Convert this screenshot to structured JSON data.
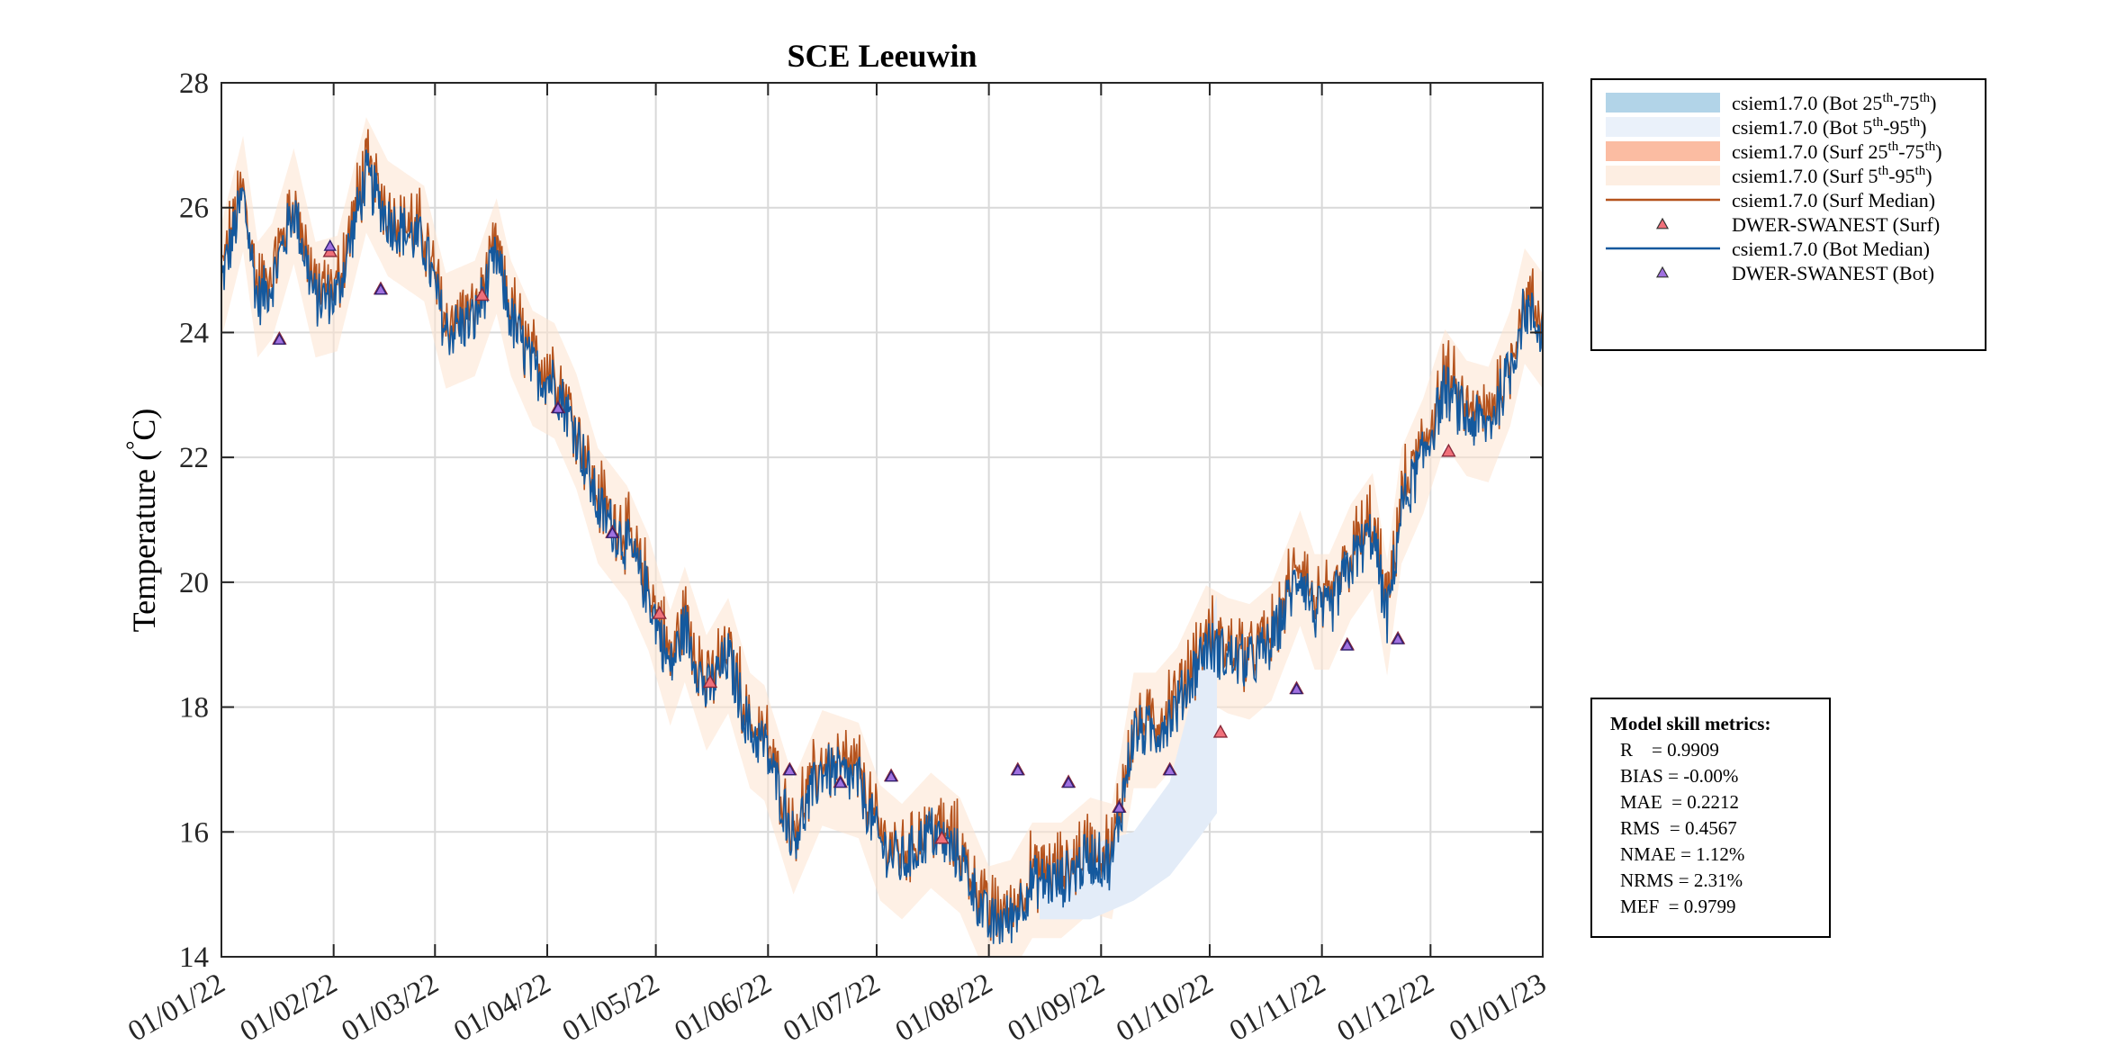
{
  "chart_data": {
    "type": "line",
    "title": "SCE Leeuwin",
    "ylabel": "Temperature (°C)",
    "ylabel_main": "Temperature (",
    "ylabel_degree": "°",
    "ylabel_unit": "C)",
    "xlabel": "",
    "ylim": [
      14,
      28
    ],
    "yticks": [
      14,
      16,
      18,
      20,
      22,
      24,
      26,
      28
    ],
    "xlim_days": [
      0,
      365
    ],
    "xticks": [
      {
        "label": "01/01/22",
        "day": 0
      },
      {
        "label": "01/02/22",
        "day": 31
      },
      {
        "label": "01/03/22",
        "day": 59
      },
      {
        "label": "01/04/22",
        "day": 90
      },
      {
        "label": "01/05/22",
        "day": 120
      },
      {
        "label": "01/06/22",
        "day": 151
      },
      {
        "label": "01/07/22",
        "day": 181
      },
      {
        "label": "01/08/22",
        "day": 212
      },
      {
        "label": "01/09/22",
        "day": 243
      },
      {
        "label": "01/10/22",
        "day": 273
      },
      {
        "label": "01/11/22",
        "day": 304
      },
      {
        "label": "01/12/22",
        "day": 334
      },
      {
        "label": "01/01/23",
        "day": 365
      }
    ],
    "grid": true,
    "median_anchors": [
      [
        0,
        24.8
      ],
      [
        6,
        26.2
      ],
      [
        10,
        24.5
      ],
      [
        14,
        24.8
      ],
      [
        20,
        26.0
      ],
      [
        26,
        24.5
      ],
      [
        32,
        24.6
      ],
      [
        40,
        26.5
      ],
      [
        46,
        25.8
      ],
      [
        56,
        25.4
      ],
      [
        62,
        24.0
      ],
      [
        70,
        24.2
      ],
      [
        76,
        25.2
      ],
      [
        80,
        24.2
      ],
      [
        86,
        23.4
      ],
      [
        92,
        23.2
      ],
      [
        98,
        22.4
      ],
      [
        104,
        21.2
      ],
      [
        112,
        20.6
      ],
      [
        118,
        19.8
      ],
      [
        124,
        18.6
      ],
      [
        128,
        19.3
      ],
      [
        134,
        18.2
      ],
      [
        140,
        18.8
      ],
      [
        146,
        17.6
      ],
      [
        150,
        17.4
      ],
      [
        158,
        15.9
      ],
      [
        166,
        17.0
      ],
      [
        176,
        16.8
      ],
      [
        182,
        15.8
      ],
      [
        188,
        15.5
      ],
      [
        196,
        16.0
      ],
      [
        204,
        15.6
      ],
      [
        212,
        14.5
      ],
      [
        218,
        14.6
      ],
      [
        224,
        15.2
      ],
      [
        232,
        15.2
      ],
      [
        240,
        15.6
      ],
      [
        246,
        15.5
      ],
      [
        252,
        17.6
      ],
      [
        258,
        17.6
      ],
      [
        264,
        18.0
      ],
      [
        272,
        19.0
      ],
      [
        278,
        18.8
      ],
      [
        284,
        18.7
      ],
      [
        290,
        19.0
      ],
      [
        298,
        20.2
      ],
      [
        302,
        19.5
      ],
      [
        306,
        19.5
      ],
      [
        312,
        20.3
      ],
      [
        318,
        20.8
      ],
      [
        322,
        19.4
      ],
      [
        326,
        21.2
      ],
      [
        332,
        22.0
      ],
      [
        338,
        23.1
      ],
      [
        344,
        22.6
      ],
      [
        350,
        22.5
      ],
      [
        356,
        23.4
      ],
      [
        360,
        24.4
      ],
      [
        365,
        24.0
      ]
    ],
    "band_anchors": [
      {
        "day": 226,
        "lo": 14.6,
        "hi": 15.6
      },
      {
        "day": 240,
        "lo": 14.6,
        "hi": 15.8
      },
      {
        "day": 252,
        "lo": 14.9,
        "hi": 16.0
      },
      {
        "day": 262,
        "lo": 15.3,
        "hi": 16.8
      },
      {
        "day": 270,
        "lo": 15.9,
        "hi": 18.6
      },
      {
        "day": 275,
        "lo": 16.3,
        "hi": 19.8
      }
    ],
    "obs_surf": [
      {
        "day": 16,
        "y": 23.9
      },
      {
        "day": 30,
        "y": 25.3
      },
      {
        "day": 44,
        "y": 24.7
      },
      {
        "day": 72,
        "y": 24.6
      },
      {
        "day": 93,
        "y": 22.8
      },
      {
        "day": 108,
        "y": 20.8
      },
      {
        "day": 121,
        "y": 19.5
      },
      {
        "day": 135,
        "y": 18.4
      },
      {
        "day": 157,
        "y": 17.0
      },
      {
        "day": 171,
        "y": 16.8
      },
      {
        "day": 185,
        "y": 16.9
      },
      {
        "day": 199,
        "y": 15.9
      },
      {
        "day": 220,
        "y": 17.0
      },
      {
        "day": 234,
        "y": 16.8
      },
      {
        "day": 248,
        "y": 16.4
      },
      {
        "day": 262,
        "y": 17.0
      },
      {
        "day": 276,
        "y": 17.6
      },
      {
        "day": 297,
        "y": 18.3
      },
      {
        "day": 311,
        "y": 19.0
      },
      {
        "day": 325,
        "y": 19.1
      },
      {
        "day": 339,
        "y": 22.1
      }
    ],
    "obs_bot": [
      {
        "day": 16,
        "y": 23.9
      },
      {
        "day": 30,
        "y": 25.4
      },
      {
        "day": 44,
        "y": 24.7
      },
      {
        "day": 93,
        "y": 22.8
      },
      {
        "day": 108,
        "y": 20.8
      },
      {
        "day": 157,
        "y": 17.0
      },
      {
        "day": 171,
        "y": 16.8
      },
      {
        "day": 185,
        "y": 16.9
      },
      {
        "day": 220,
        "y": 17.0
      },
      {
        "day": 234,
        "y": 16.8
      },
      {
        "day": 248,
        "y": 16.4
      },
      {
        "day": 262,
        "y": 17.0
      },
      {
        "day": 297,
        "y": 18.3
      },
      {
        "day": 311,
        "y": 19.0
      },
      {
        "day": 325,
        "y": 19.1
      }
    ],
    "legend": [
      {
        "base": "csiem1.7.0 (Bot 25",
        "sup1": "th",
        "mid": "-75",
        "sup2": "th",
        "end": ")",
        "kind": "band",
        "color": "#b2d4e8"
      },
      {
        "base": "csiem1.7.0 (Bot 5",
        "sup1": "th",
        "mid": "-95",
        "sup2": "th",
        "end": ")",
        "kind": "band",
        "color": "#eaf1fa"
      },
      {
        "base": "csiem1.7.0 (Surf 25",
        "sup1": "th",
        "mid": "-75",
        "sup2": "th",
        "end": ")",
        "kind": "band",
        "color": "#fbbca2"
      },
      {
        "base": "csiem1.7.0 (Surf 5",
        "sup1": "th",
        "mid": "-95",
        "sup2": "th",
        "end": ")",
        "kind": "band",
        "color": "#fdeee2"
      },
      {
        "text": "csiem1.7.0 (Surf Median)",
        "kind": "line",
        "color": "#b5531d"
      },
      {
        "text": "DWER-SWANEST (Surf)",
        "kind": "marker",
        "color": "#f0707a"
      },
      {
        "text": "csiem1.7.0 (Bot Median)",
        "kind": "line",
        "color": "#14599e"
      },
      {
        "text": "DWER-SWANEST (Bot)",
        "kind": "marker",
        "color": "#a070e0"
      }
    ],
    "metrics_title": "Model skill metrics:",
    "metrics": [
      "R    = 0.9909",
      "BIAS = -0.00%",
      "MAE  = 0.2212",
      "RMS  = 0.4567",
      "NMAE = 1.12%",
      "NRMS = 2.31%",
      "MEF  = 0.9799"
    ]
  },
  "colors": {
    "bot_median": "#14599e",
    "surf_median": "#b5531d",
    "surf_outer_band": "#fde3d0",
    "bot_outer_band": "#e3ecf8",
    "grid": "#d9d9d9",
    "axis": "#262626"
  }
}
